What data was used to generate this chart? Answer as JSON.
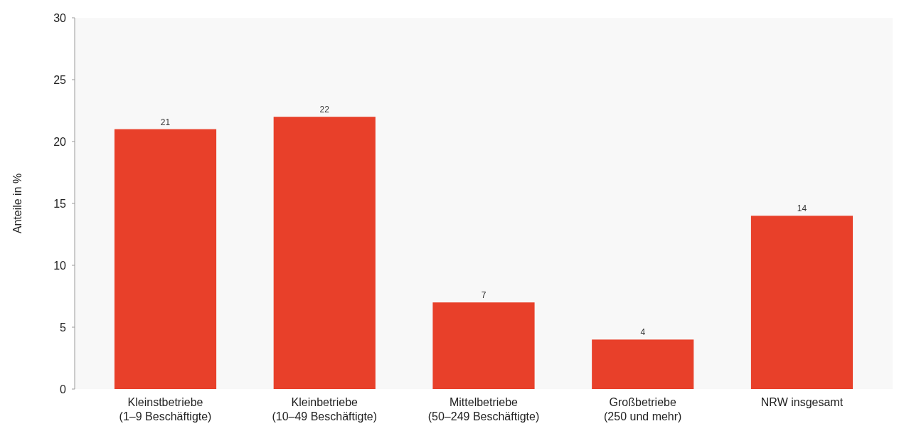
{
  "chart_data": {
    "type": "bar",
    "ylabel": "Anteile in %",
    "categories": [
      "Kleinstbetriebe\n(1–9 Beschäftigte)",
      "Kleinbetriebe\n(10–49 Beschäftigte)",
      "Mittelbetriebe\n(50–249 Beschäftigte)",
      "Großbetriebe\n(250 und mehr)",
      "NRW insgesamt"
    ],
    "values": [
      21,
      22,
      7,
      4,
      14
    ],
    "color": "#e8402a",
    "ylim": [
      0,
      30
    ],
    "yticks": [
      0,
      5,
      10,
      15,
      20,
      25,
      30
    ],
    "data_labels": true,
    "grid": false
  }
}
